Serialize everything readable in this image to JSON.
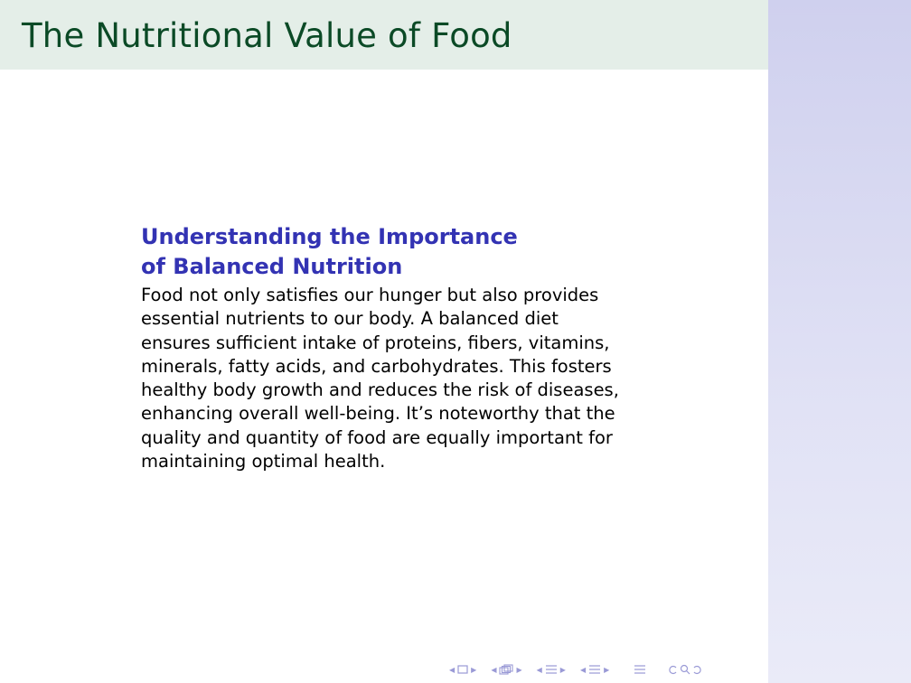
{
  "slide": {
    "title": "The Nutritional Value of Food",
    "block": {
      "title": "Understanding the Importance of Balanced Nutrition",
      "body": "Food not only satisfies our hunger but also provides essential nutrients to our body. A balanced diet ensures sufficient intake of proteins, fibers, vitamins, minerals, fatty acids, and carbohydrates. This fosters healthy body growth and reduces the risk of diseases, enhancing overall well-being. It’s noteworthy that the quality and quantity of food are equally important for maintaining optimal health."
    }
  },
  "navigation": {
    "icons": [
      "slide-nav-icon",
      "frame-nav-icon",
      "subsection-nav-icon",
      "section-nav-icon",
      "outline-icon",
      "search-icon"
    ]
  },
  "colors": {
    "title_bar_bg": "#e4eee8",
    "title_text": "#0b4a26",
    "block_title": "#3333b3",
    "sidebar": "#cfd0ee"
  }
}
